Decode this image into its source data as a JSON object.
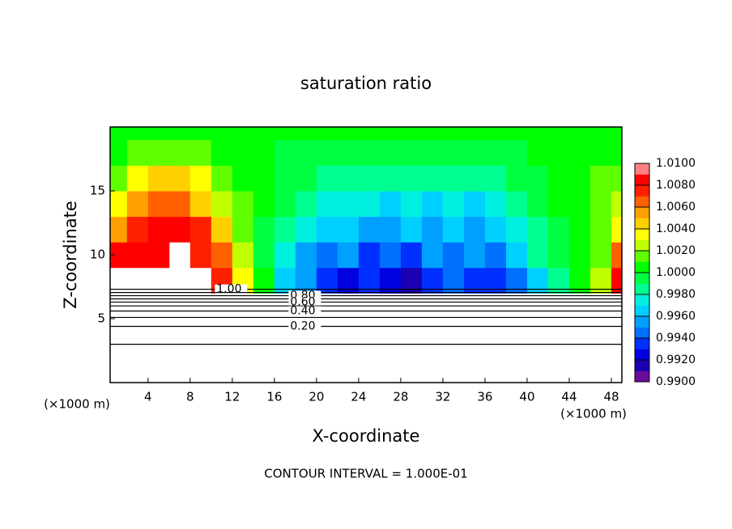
{
  "chart_data": {
    "type": "contour",
    "title": "saturation ratio",
    "x_label": "X-coordinate",
    "y_label": "Z-coordinate",
    "x_unit": "(×1000 m)",
    "footer": "CONTOUR INTERVAL = 1.000E-01",
    "xlim": [
      0.4,
      49
    ],
    "xticks": [
      4,
      8,
      12,
      16,
      20,
      24,
      28,
      32,
      36,
      40,
      44,
      48
    ],
    "ylim": [
      0,
      20
    ],
    "yticks": [
      5,
      10,
      15
    ],
    "grid_data": {
      "x": [
        1,
        3,
        5,
        7,
        9,
        11,
        13,
        15,
        17,
        19,
        21,
        23,
        25,
        27,
        29,
        31,
        33,
        35,
        37,
        39,
        41,
        43,
        45,
        47,
        49
      ],
      "y": [
        8,
        10,
        12,
        14,
        16,
        18,
        20
      ],
      "z": [
        [
          null,
          null,
          null,
          null,
          null,
          1.007,
          1.003,
          1.0,
          0.996,
          0.995,
          0.993,
          0.992,
          0.993,
          0.992,
          0.991,
          0.993,
          0.994,
          0.993,
          0.993,
          0.994,
          0.996,
          0.998,
          1.0,
          1.002,
          1.008
        ],
        [
          1.008,
          1.008,
          1.008,
          null,
          1.007,
          1.006,
          1.002,
          0.999,
          0.997,
          0.995,
          0.994,
          0.995,
          0.993,
          0.994,
          0.993,
          0.995,
          0.994,
          0.995,
          0.994,
          0.996,
          0.998,
          0.999,
          1.0,
          1.001,
          1.006
        ],
        [
          1.005,
          1.007,
          1.008,
          1.008,
          1.007,
          1.004,
          1.001,
          0.999,
          0.998,
          0.997,
          0.996,
          0.996,
          0.995,
          0.995,
          0.996,
          0.995,
          0.996,
          0.995,
          0.996,
          0.997,
          0.998,
          0.999,
          1.0,
          1.001,
          1.003
        ],
        [
          1.003,
          1.005,
          1.006,
          1.006,
          1.004,
          1.002,
          1.001,
          1.0,
          0.999,
          0.998,
          0.997,
          0.997,
          0.997,
          0.996,
          0.997,
          0.996,
          0.997,
          0.996,
          0.997,
          0.998,
          0.999,
          1.0,
          1.0,
          1.001,
          1.002
        ],
        [
          1.001,
          1.003,
          1.004,
          1.004,
          1.003,
          1.001,
          1.0,
          1.0,
          0.999,
          0.999,
          0.998,
          0.998,
          0.998,
          0.998,
          0.998,
          0.998,
          0.998,
          0.998,
          0.998,
          0.999,
          0.999,
          1.0,
          1.0,
          1.001,
          1.001
        ],
        [
          1.0,
          1.001,
          1.001,
          1.001,
          1.001,
          1.0,
          1.0,
          1.0,
          0.999,
          0.999,
          0.999,
          0.999,
          0.999,
          0.999,
          0.999,
          0.999,
          0.999,
          0.999,
          0.999,
          0.999,
          1.0,
          1.0,
          1.0,
          1.0,
          1.0
        ],
        [
          1.0,
          1.0,
          1.0,
          1.0,
          1.0,
          1.0,
          1.0,
          1.0,
          1.0,
          1.0,
          1.0,
          1.0,
          1.0,
          1.0,
          1.0,
          1.0,
          1.0,
          1.0,
          1.0,
          1.0,
          1.0,
          1.0,
          1.0,
          1.0,
          1.0
        ]
      ]
    },
    "colorbar": {
      "levels": [
        0.99,
        0.991,
        0.992,
        0.993,
        0.994,
        0.995,
        0.996,
        0.997,
        0.998,
        0.999,
        1.0,
        1.001,
        1.002,
        1.003,
        1.004,
        1.005,
        1.006,
        1.007,
        1.008,
        1.009,
        1.01
      ],
      "colors": [
        "#6a0d9c",
        "#1a00b0",
        "#0000e0",
        "#0030ff",
        "#0070ff",
        "#00a0ff",
        "#00d0ff",
        "#00f0e0",
        "#00ff90",
        "#00ff40",
        "#00ff00",
        "#60ff00",
        "#c0ff00",
        "#ffff00",
        "#ffd000",
        "#ffa000",
        "#ff6000",
        "#ff2000",
        "#ff0000",
        "#ff8080"
      ],
      "ticks": [
        {
          "value": 0.99,
          "label": "0.9900"
        },
        {
          "value": 0.992,
          "label": "0.9920"
        },
        {
          "value": 0.994,
          "label": "0.9940"
        },
        {
          "value": 0.996,
          "label": "0.9960"
        },
        {
          "value": 0.998,
          "label": "0.9980"
        },
        {
          "value": 1.0,
          "label": "1.0000"
        },
        {
          "value": 1.002,
          "label": "1.0020"
        },
        {
          "value": 1.004,
          "label": "1.0040"
        },
        {
          "value": 1.006,
          "label": "1.0060"
        },
        {
          "value": 1.008,
          "label": "1.0080"
        },
        {
          "value": 1.01,
          "label": "1.0100"
        }
      ]
    },
    "contours": [
      {
        "level": 1.0,
        "z": 7.3,
        "label": "1.00",
        "label_x": 10.5
      },
      {
        "level": 0.9,
        "z": 7.05
      },
      {
        "level": 0.8,
        "z": 6.8,
        "label": "0.80",
        "label_x": 17.5
      },
      {
        "level": 0.7,
        "z": 6.55
      },
      {
        "level": 0.6,
        "z": 6.3,
        "label": "0.60",
        "label_x": 17.5
      },
      {
        "level": 0.5,
        "z": 6.0
      },
      {
        "level": 0.4,
        "z": 5.6,
        "label": "0.40",
        "label_x": 17.5
      },
      {
        "level": 0.3,
        "z": 5.1
      },
      {
        "level": 0.2,
        "z": 4.4,
        "label": "0.20",
        "label_x": 17.5
      },
      {
        "level": 0.1,
        "z": 3.0
      }
    ]
  }
}
